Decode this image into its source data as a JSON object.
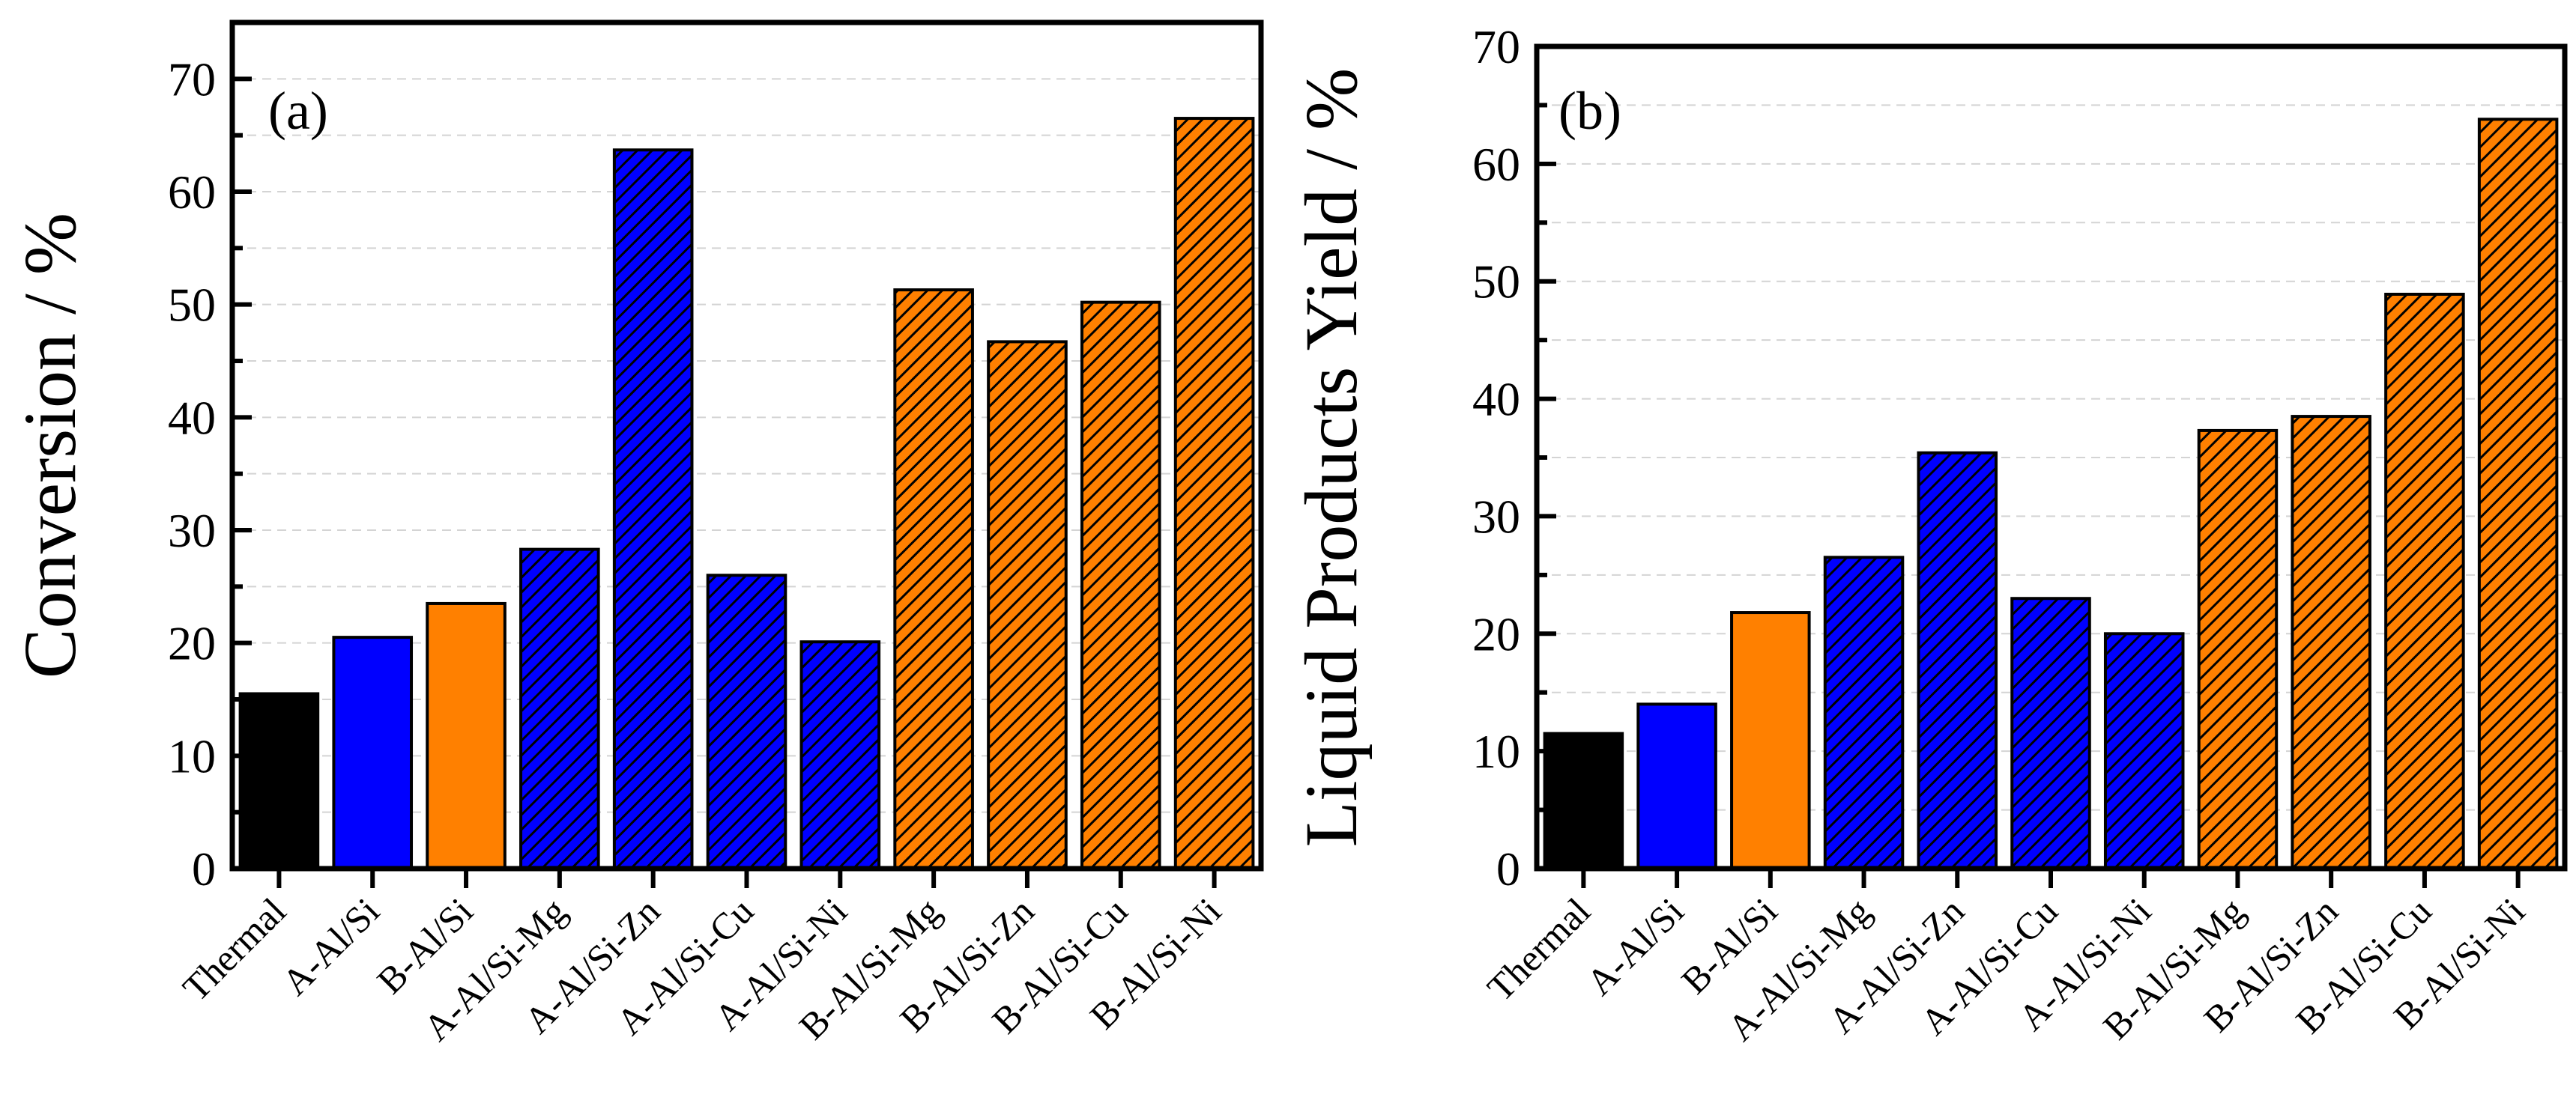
{
  "figure": {
    "colors": {
      "thermal": "#000000",
      "a_series": "#0000ff",
      "b_series": "#ff8000",
      "hatch": "#000000",
      "grid": "#d4d4d4"
    },
    "hatched_categories": [
      "A-Al/Si-Mg",
      "A-Al/Si-Zn",
      "A-Al/Si-Cu",
      "A-Al/Si-Ni",
      "B-Al/Si-Mg",
      "B-Al/Si-Zn",
      "B-Al/Si-Cu",
      "B-Al/Si-Ni"
    ]
  },
  "chart_data": [
    {
      "type": "bar",
      "panel_label": "(a)",
      "title": "",
      "xlabel": "",
      "ylabel": "Conversion / %",
      "ylim": [
        0,
        75
      ],
      "yticks": [
        0,
        10,
        20,
        30,
        40,
        50,
        60,
        70
      ],
      "grid": true,
      "categories": [
        "Thermal",
        "A-Al/Si",
        "B-Al/Si",
        "A-Al/Si-Mg",
        "A-Al/Si-Zn",
        "A-Al/Si-Cu",
        "A-Al/Si-Ni",
        "B-Al/Si-Mg",
        "B-Al/Si-Zn",
        "B-Al/Si-Cu",
        "B-Al/Si-Ni"
      ],
      "values": [
        15.5,
        20.5,
        23.5,
        28.3,
        63.7,
        26.0,
        20.1,
        51.3,
        46.7,
        50.2,
        66.5
      ]
    },
    {
      "type": "bar",
      "panel_label": "(b)",
      "title": "",
      "xlabel": "",
      "ylabel": "Liquid Products Yield / %",
      "ylim": [
        0,
        70
      ],
      "yticks": [
        0,
        10,
        20,
        30,
        40,
        50,
        60,
        70
      ],
      "grid": true,
      "categories": [
        "Thermal",
        "A-Al/Si",
        "B-Al/Si",
        "A-Al/Si-Mg",
        "A-Al/Si-Zn",
        "A-Al/Si-Cu",
        "A-Al/Si-Ni",
        "B-Al/Si-Mg",
        "B-Al/Si-Zn",
        "B-Al/Si-Cu",
        "B-Al/Si-Ni"
      ],
      "values": [
        11.5,
        14.0,
        21.8,
        26.5,
        35.4,
        23.0,
        20.0,
        37.3,
        38.5,
        48.9,
        63.8
      ]
    }
  ]
}
